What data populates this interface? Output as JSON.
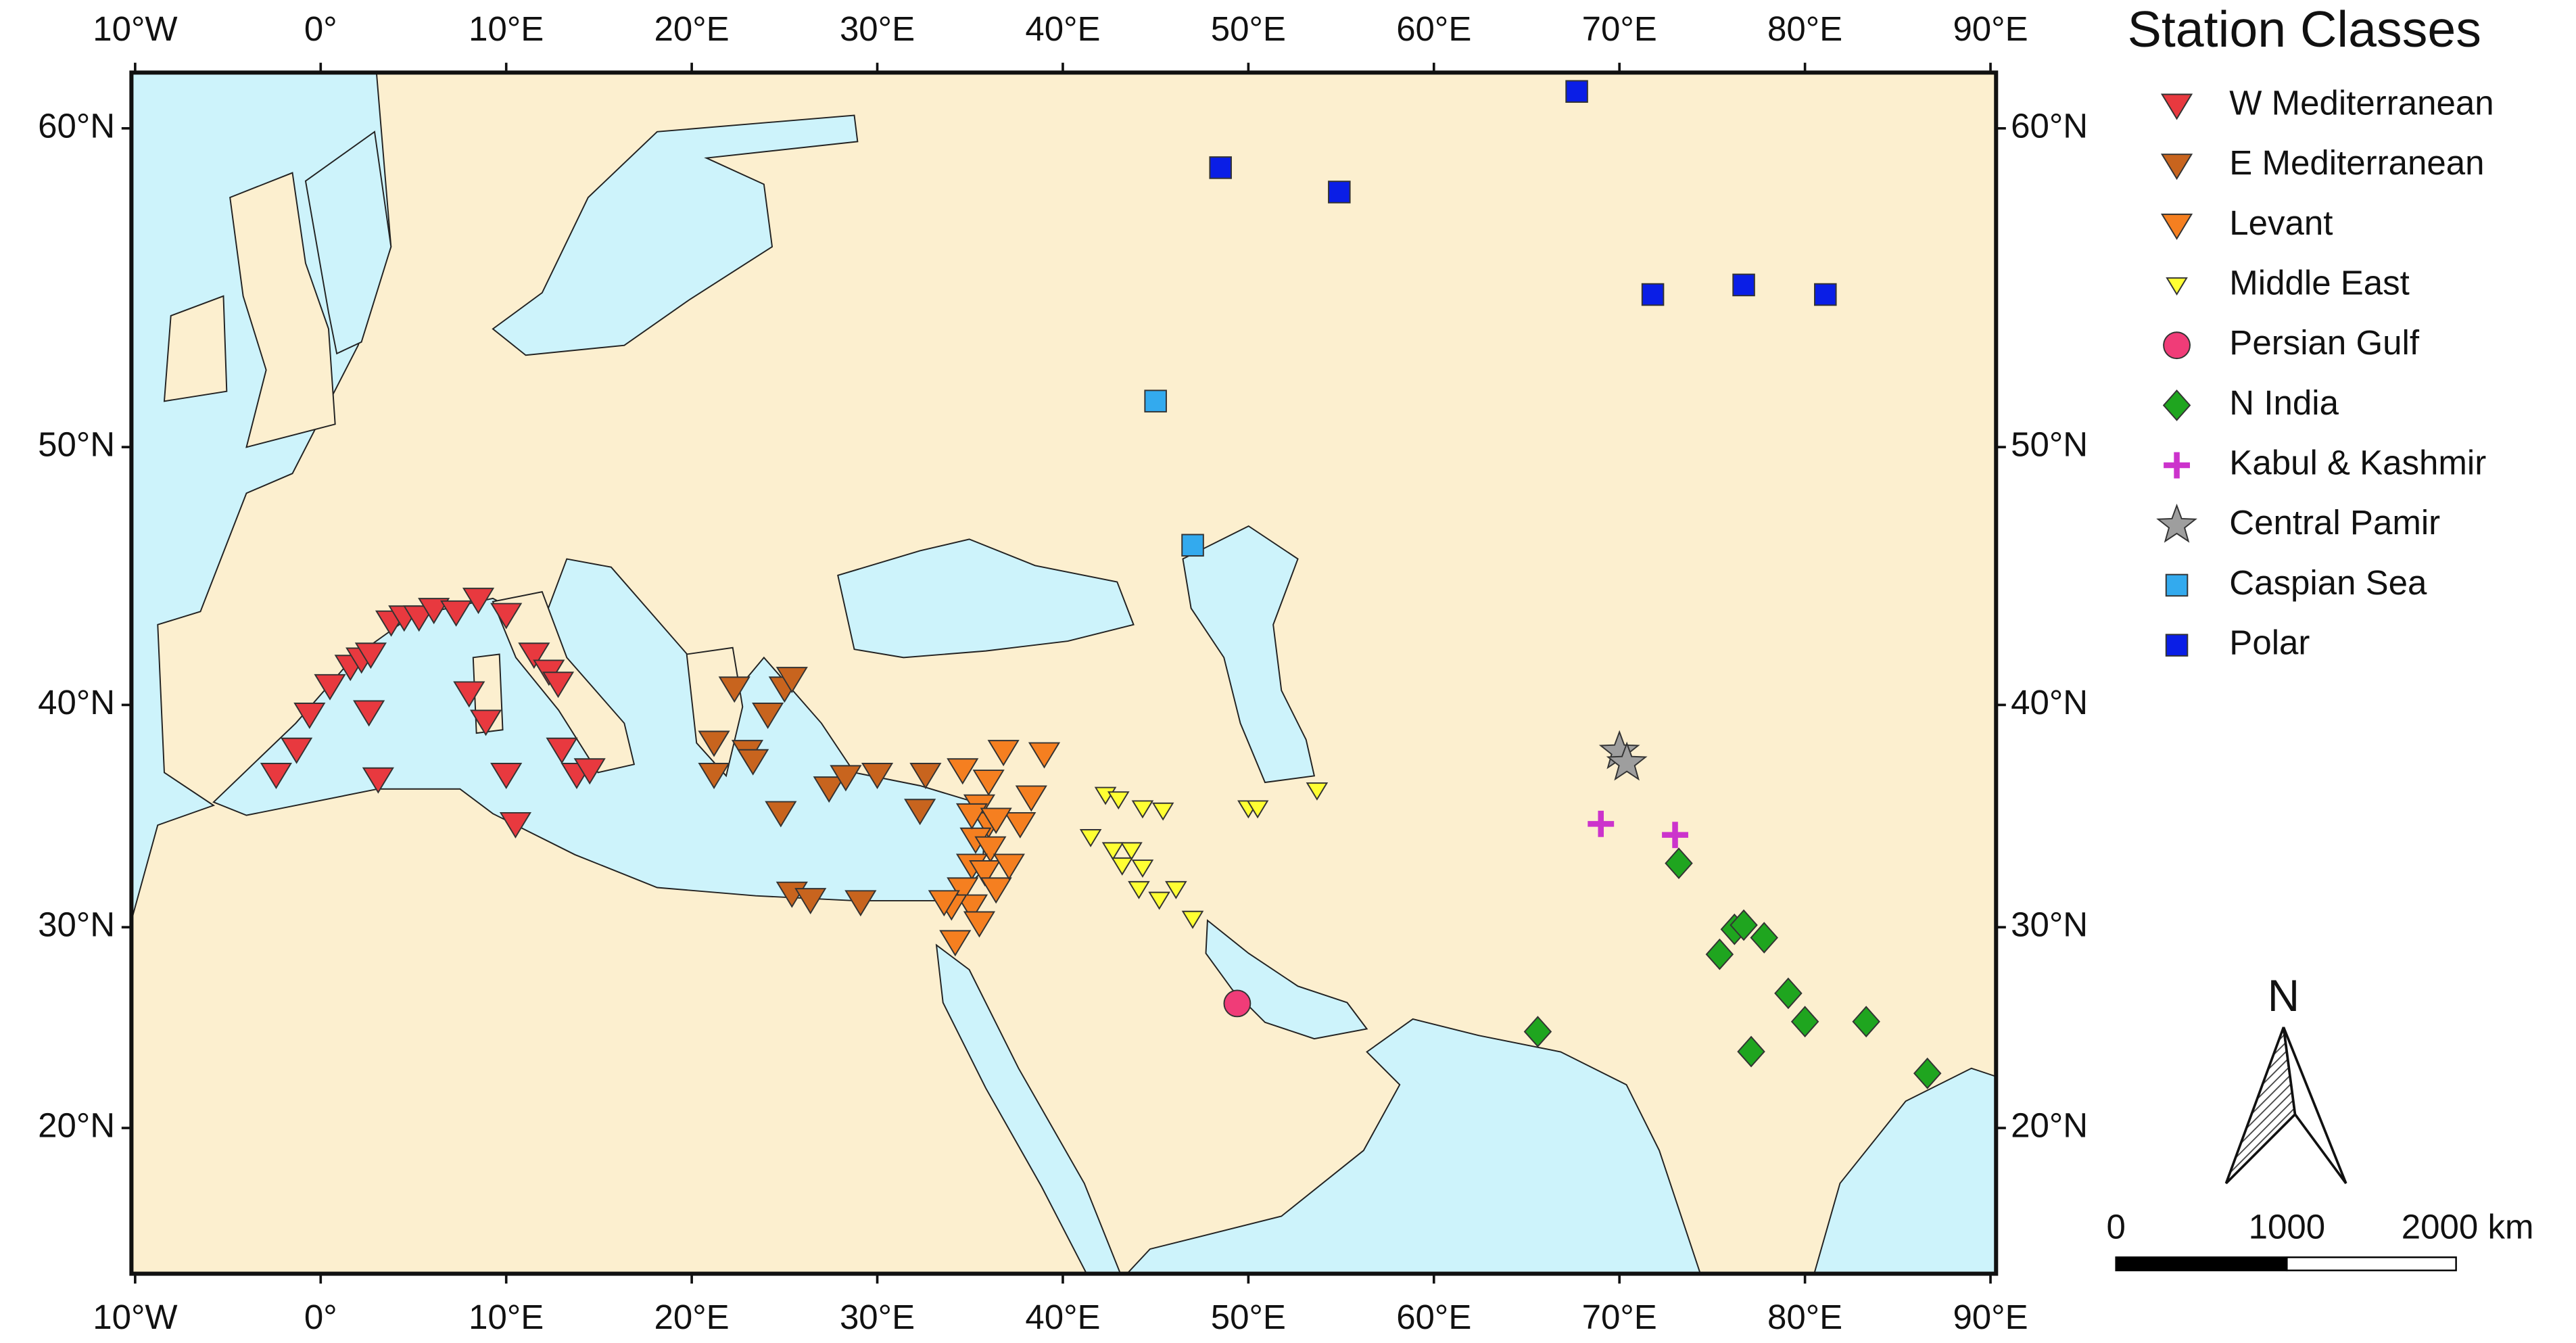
{
  "map": {
    "legend_title": "Station Classes",
    "xlim": [
      -10.2,
      90.3
    ],
    "ylim": [
      12.3,
      61.5
    ],
    "xticks": [
      {
        "value": -10,
        "label": "10°W"
      },
      {
        "value": 0,
        "label": "0°"
      },
      {
        "value": 10,
        "label": "10°E"
      },
      {
        "value": 20,
        "label": "20°E"
      },
      {
        "value": 30,
        "label": "30°E"
      },
      {
        "value": 40,
        "label": "40°E"
      },
      {
        "value": 50,
        "label": "50°E"
      },
      {
        "value": 60,
        "label": "60°E"
      },
      {
        "value": 70,
        "label": "70°E"
      },
      {
        "value": 80,
        "label": "80°E"
      },
      {
        "value": 90,
        "label": "90°E"
      }
    ],
    "yticks": [
      {
        "value": 20,
        "label": "20°N"
      },
      {
        "value": 30,
        "label": "30°N"
      },
      {
        "value": 40,
        "label": "40°N"
      },
      {
        "value": 50,
        "label": "50°N"
      },
      {
        "value": 60,
        "label": "60°N"
      }
    ],
    "classes": [
      {
        "name": "W Mediterranean",
        "color": "#e8393f",
        "marker": "triangle-down",
        "lon": [
          -2.4,
          -1.3,
          -0.6,
          0.5,
          1.6,
          2.2,
          2.7,
          2.6,
          3.1,
          3.8,
          4.5,
          5.3,
          6.1,
          7.3,
          8.5,
          10.0,
          8.0,
          8.9,
          11.5,
          12.3,
          12.8,
          13.0,
          13.8,
          14.5,
          10.5,
          10.0
        ],
        "lat": [
          37.0,
          38.1,
          39.6,
          40.8,
          41.6,
          41.9,
          42.1,
          39.7,
          36.8,
          43.4,
          43.6,
          43.6,
          43.9,
          43.8,
          44.3,
          43.7,
          40.5,
          39.3,
          42.1,
          41.4,
          40.9,
          38.1,
          37.0,
          37.2,
          34.8,
          37.0
        ]
      },
      {
        "name": "E Mediterranean",
        "color": "#c8641e",
        "marker": "triangle-down",
        "lon": [
          21.2,
          22.3,
          23.0,
          24.1,
          25.0,
          25.4,
          23.3,
          21.2,
          24.8,
          27.4,
          28.3,
          30.0,
          32.3,
          32.6,
          25.4,
          26.4,
          29.1
        ],
        "lat": [
          38.4,
          40.7,
          38.0,
          39.6,
          40.7,
          41.1,
          37.6,
          37.0,
          35.3,
          36.4,
          36.9,
          37.0,
          35.4,
          37.0,
          31.6,
          31.3,
          31.2
        ]
      },
      {
        "name": "Levant",
        "color": "#f57f20",
        "marker": "triangle-down",
        "lon": [
          34.6,
          36.8,
          39.0,
          38.3,
          36.0,
          35.5,
          36.0,
          35.3,
          36.1,
          35.1,
          35.8,
          36.4,
          34.6,
          35.1,
          34.0,
          35.5,
          34.2,
          37.1,
          37.7,
          33.6,
          35.1,
          36.4
        ],
        "lat": [
          37.2,
          38.0,
          37.9,
          36.0,
          36.7,
          35.6,
          34.8,
          34.1,
          33.7,
          32.9,
          32.6,
          31.8,
          31.8,
          31.0,
          31.0,
          30.2,
          29.3,
          32.9,
          34.8,
          31.2,
          35.2,
          35.0
        ]
      },
      {
        "name": "Middle East",
        "color": "#ffff33",
        "marker": "triangle-down-small",
        "lon": [
          42.3,
          43.0,
          44.3,
          45.4,
          41.5,
          42.7,
          43.7,
          43.2,
          44.3,
          44.1,
          45.2,
          46.1,
          47.0,
          50.0,
          50.5,
          53.7
        ],
        "lat": [
          36.1,
          35.9,
          35.5,
          35.4,
          34.2,
          33.6,
          33.6,
          32.9,
          32.8,
          31.8,
          31.3,
          31.8,
          30.4,
          35.5,
          35.5,
          36.3
        ]
      },
      {
        "name": "Persian Gulf",
        "color": "#f03c78",
        "marker": "circle",
        "lon": [
          49.4
        ],
        "lat": [
          26.3
        ]
      },
      {
        "name": "N India",
        "color": "#1fa51f",
        "marker": "diamond",
        "lon": [
          65.6,
          73.2,
          75.4,
          76.2,
          76.7,
          77.8,
          79.1,
          80.0,
          77.1,
          83.3,
          86.6
        ],
        "lat": [
          24.9,
          33.0,
          28.7,
          29.9,
          30.1,
          29.5,
          26.8,
          25.4,
          23.9,
          25.4,
          22.8
        ]
      },
      {
        "name": "Kabul & Kashmir",
        "color": "#cc33cc",
        "marker": "plus",
        "lon": [
          69.0,
          73.0
        ],
        "lat": [
          34.8,
          34.3
        ]
      },
      {
        "name": "Central Pamir",
        "color": "#9e9e9e",
        "marker": "star",
        "lon": [
          70.0,
          70.4
        ],
        "lat": [
          38.0,
          37.5
        ]
      },
      {
        "name": "Caspian Sea",
        "color": "#33aaee",
        "marker": "square",
        "lon": [
          45.0,
          47.0
        ],
        "lat": [
          51.6,
          46.4
        ]
      },
      {
        "name": "Polar",
        "color": "#0a1ee6",
        "marker": "square",
        "lon": [
          48.5,
          54.9,
          67.7,
          71.8,
          76.7,
          81.1
        ],
        "lat": [
          58.9,
          58.2,
          61.0,
          55.1,
          55.4,
          55.1
        ]
      }
    ],
    "north_label": "N",
    "scale_labels": [
      "0",
      "1000",
      "2000 km"
    ]
  }
}
